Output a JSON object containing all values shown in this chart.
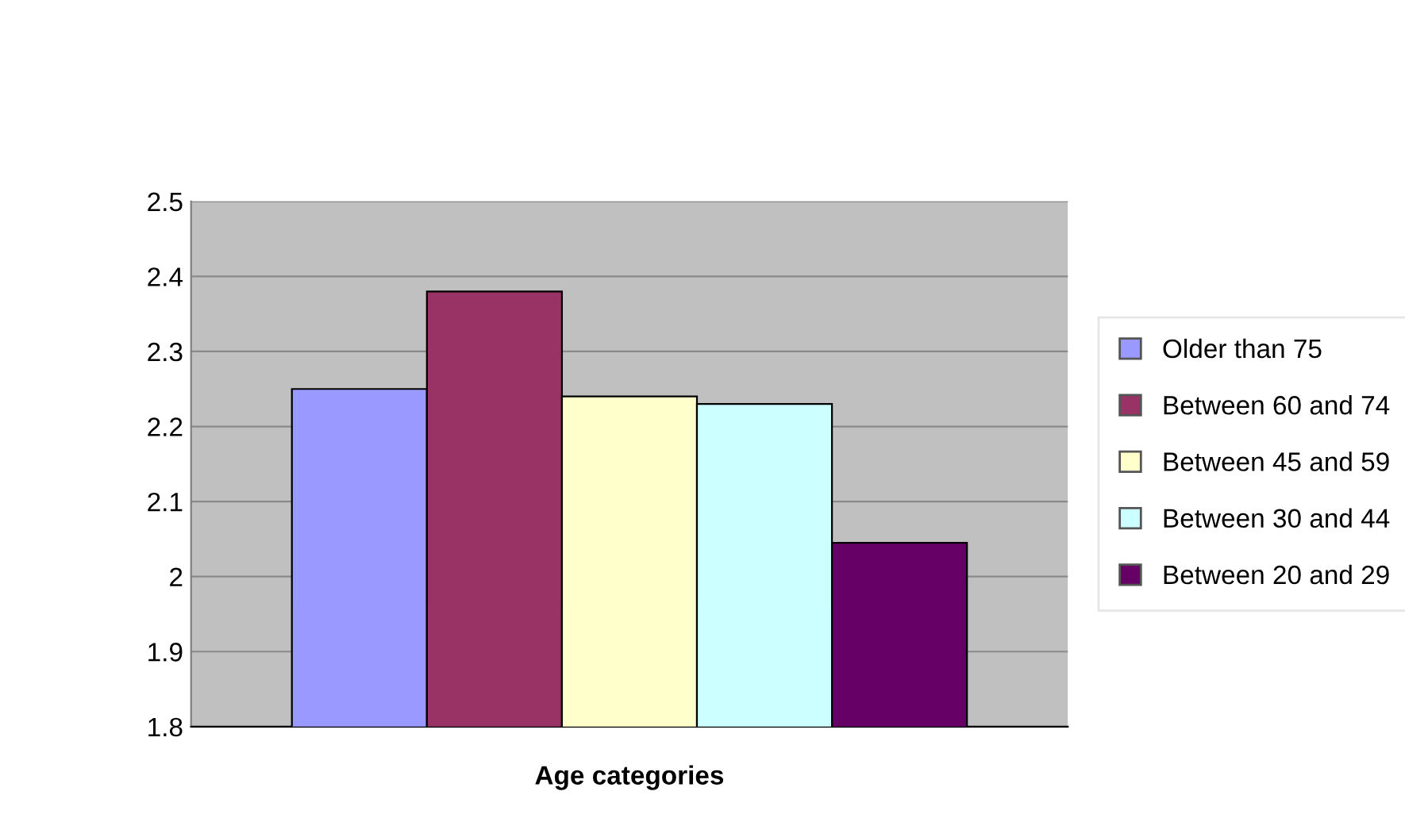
{
  "chart_data": {
    "type": "bar",
    "xlabel": "Age categories",
    "categories": [
      null
    ],
    "series": [
      {
        "name": "Older than 75",
        "color": "#9999ff",
        "values": [
          2.25
        ]
      },
      {
        "name": "Between 60 and 74",
        "color": "#993366",
        "values": [
          2.38
        ]
      },
      {
        "name": "Between 45 and 59",
        "color": "#ffffcc",
        "values": [
          2.24
        ]
      },
      {
        "name": "Between 30 and 44",
        "color": "#ccffff",
        "values": [
          2.23
        ]
      },
      {
        "name": "Between 20 and 29",
        "color": "#660066",
        "values": [
          2.045
        ]
      }
    ],
    "ylim": [
      1.8,
      2.5
    ],
    "yticks": [
      {
        "value": 1.8,
        "label": "1.8"
      },
      {
        "value": 1.9,
        "label": "1.9"
      },
      {
        "value": 2.0,
        "label": "2"
      },
      {
        "value": 2.1,
        "label": "2.1"
      },
      {
        "value": 2.2,
        "label": "2.2"
      },
      {
        "value": 2.3,
        "label": "2.3"
      },
      {
        "value": 2.4,
        "label": "2.4"
      },
      {
        "value": 2.5,
        "label": "2.5"
      }
    ],
    "grid": "y",
    "legend": "right"
  }
}
